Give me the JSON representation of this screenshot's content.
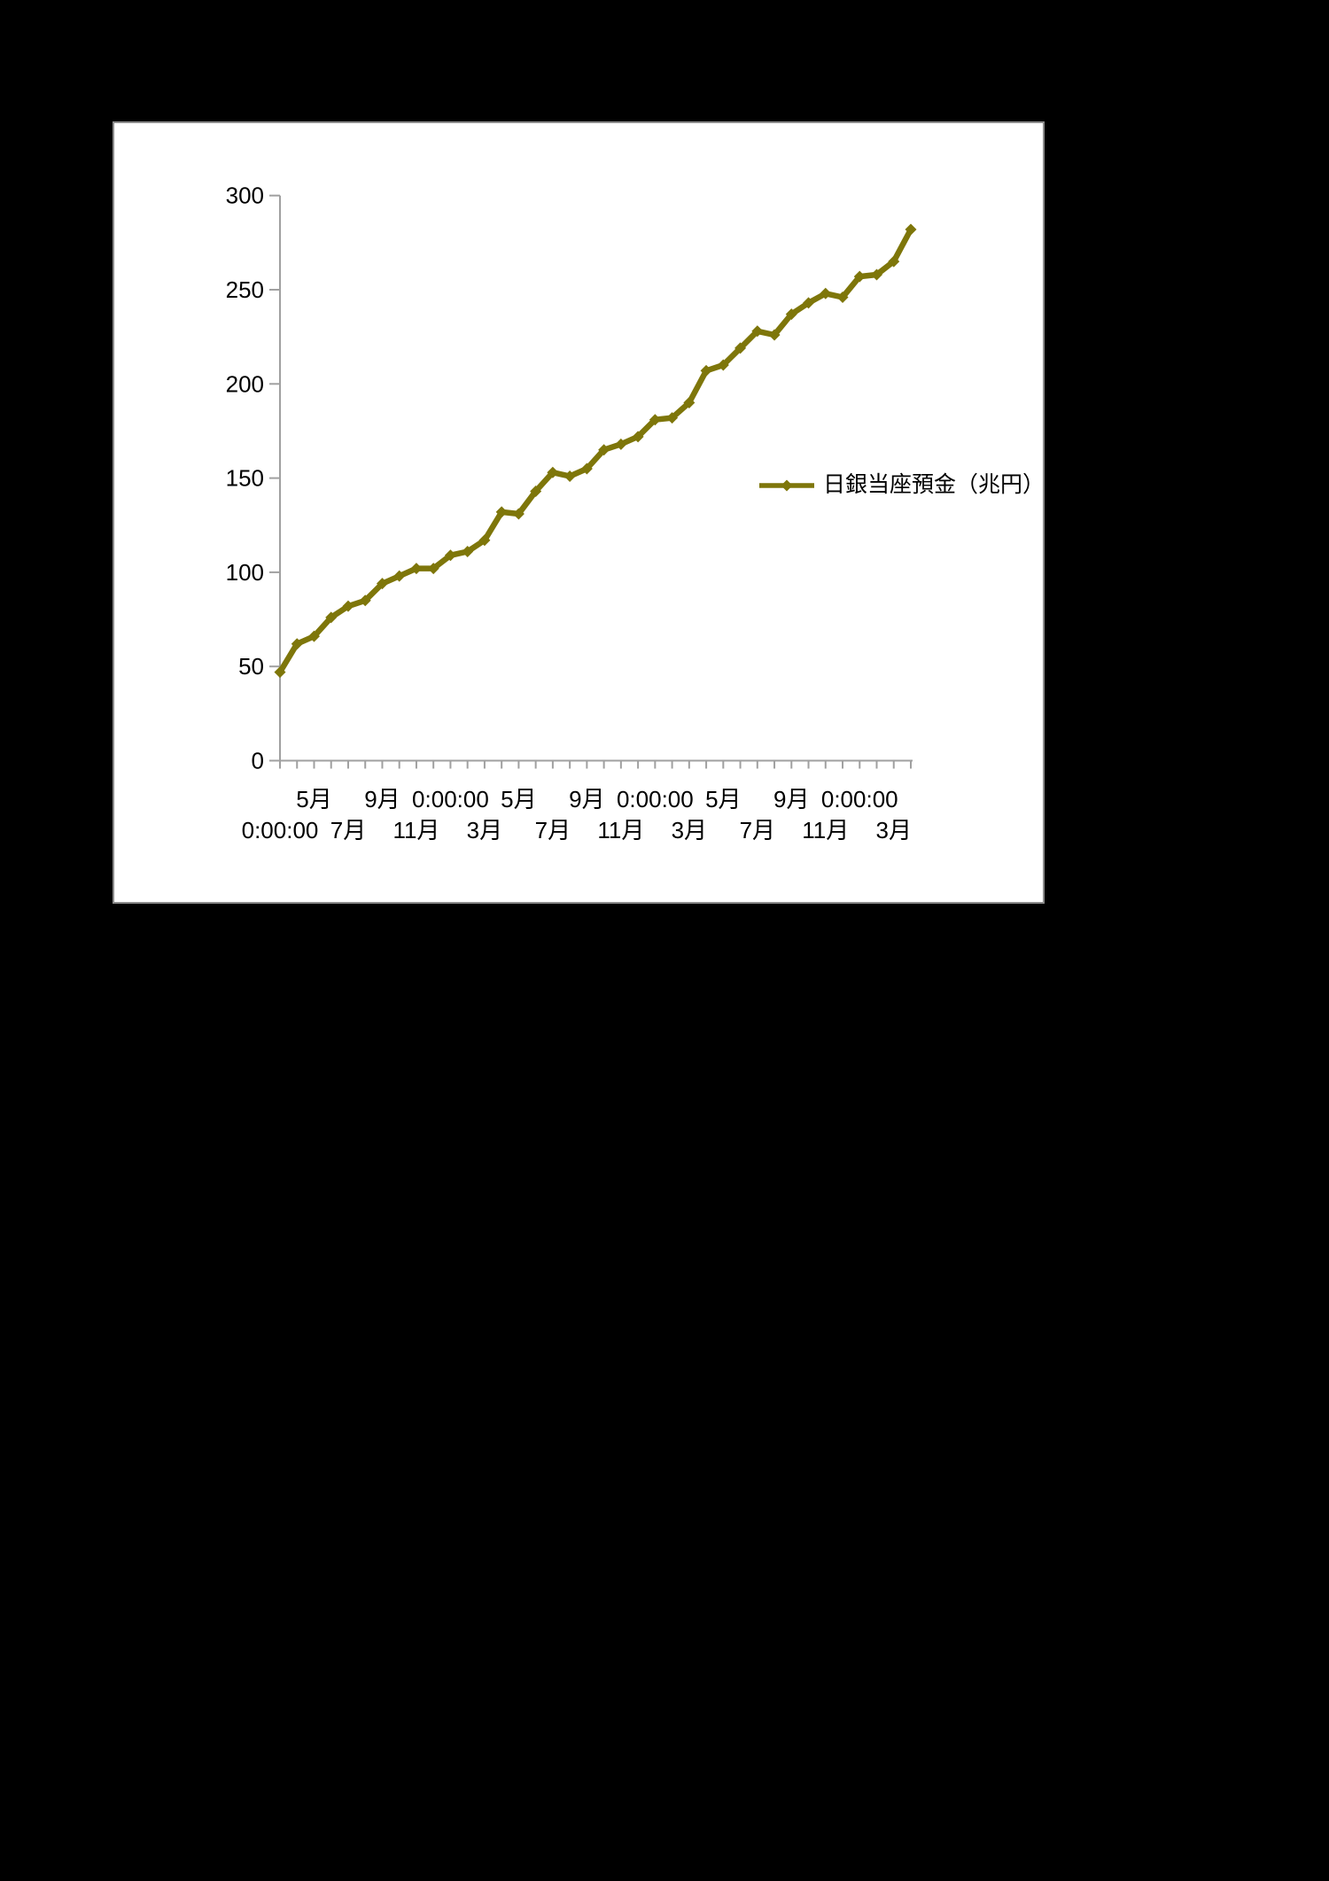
{
  "canvas": {
    "background_color": "#000000"
  },
  "chart_window": {
    "background_color": "#ffffff",
    "frame_color": "#8c8c8c"
  },
  "chart_data": {
    "type": "line",
    "title": "",
    "xlabel": "",
    "ylabel": "",
    "grid": "off",
    "legend_position": "middle-right",
    "axis_color": "#a0a0a0",
    "text_color": "#000000",
    "ylim": [
      0,
      300
    ],
    "y_ticks": [
      0,
      50,
      100,
      150,
      200,
      250,
      300
    ],
    "x_point_count": 38,
    "x_label_step": 4,
    "x_label_offset_lower": 0,
    "x_label_offset_upper": 2,
    "x_tick_labels_row_upper": [
      "5月",
      "9月",
      "0:00:00",
      "5月",
      "9月",
      "0:00:00",
      "5月",
      "9月",
      "0:00:00"
    ],
    "x_tick_labels_row_lower": [
      "0:00:00",
      "7月",
      "11月",
      "3月",
      "7月",
      "11月",
      "3月",
      "7月",
      "11月",
      "3月"
    ],
    "series": [
      {
        "name": "日銀当座預金（兆円）",
        "color": "#7e760a",
        "marker": "diamond",
        "values": [
          47,
          62,
          66,
          76,
          82,
          85,
          94,
          98,
          102,
          102,
          109,
          111,
          117,
          132,
          131,
          143,
          153,
          151,
          155,
          165,
          168,
          172,
          181,
          182,
          190,
          207,
          210,
          219,
          228,
          226,
          237,
          243,
          248,
          246,
          257,
          258,
          265,
          282
        ]
      }
    ]
  }
}
